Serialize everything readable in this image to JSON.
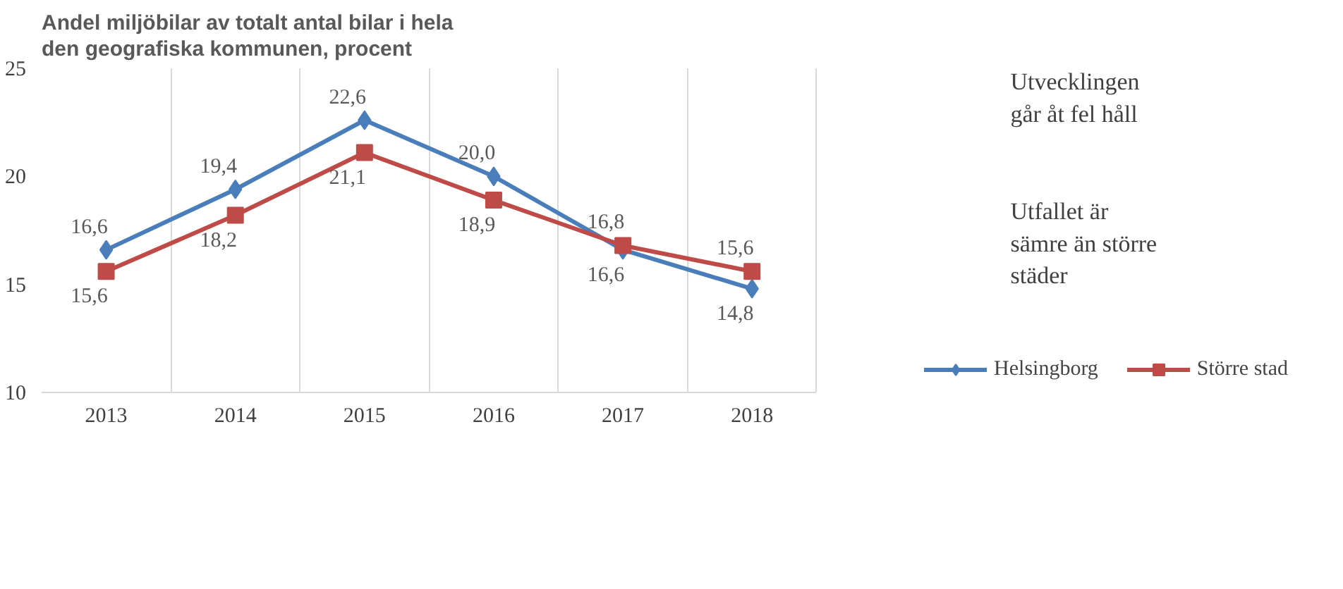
{
  "chart_data": {
    "type": "line",
    "title": "Andel miljöbilar av totalt antal bilar i hela\nden geografiska kommunen, procent",
    "categories": [
      "2013",
      "2014",
      "2015",
      "2016",
      "2017",
      "2018"
    ],
    "series": [
      {
        "name": "Helsingborg",
        "color": "#4a7ebb",
        "marker": "diamond",
        "values": [
          16.6,
          19.4,
          22.6,
          20.0,
          16.6,
          14.8
        ],
        "value_labels": [
          "16,6",
          "19,4",
          "22,6",
          "20,0",
          "16,6",
          "14,8"
        ]
      },
      {
        "name": "Större stad",
        "color": "#be4b48",
        "marker": "square",
        "values": [
          15.6,
          18.2,
          21.1,
          18.9,
          16.8,
          15.6
        ],
        "value_labels": [
          "15,6",
          "18,2",
          "21,1",
          "18,9",
          "16,8",
          "15,6"
        ]
      }
    ],
    "ylim": [
      10,
      25
    ],
    "yticks": [
      10,
      15,
      20,
      25
    ],
    "grid": "x",
    "legend": "bottom",
    "annotations": [
      "Utvecklingen\ngår åt fel håll",
      "Utfallet är\nsämre än större\nstäder"
    ]
  }
}
